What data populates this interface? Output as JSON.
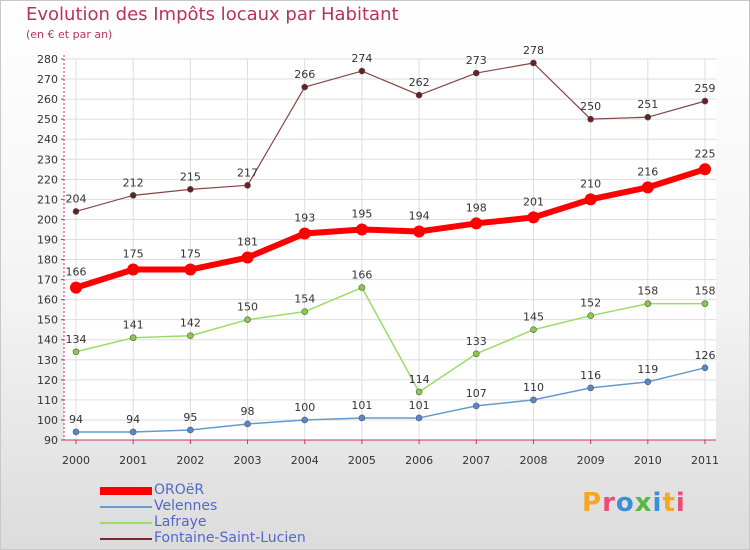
{
  "title": "Evolution des Impôts locaux par Habitant",
  "subtitle": "(en € et par an)",
  "logo_text": "Proxiti",
  "chart_data": {
    "type": "line",
    "x": [
      "2000",
      "2001",
      "2002",
      "2003",
      "2004",
      "2005",
      "2006",
      "2007",
      "2008",
      "2009",
      "2010",
      "2011"
    ],
    "ylim": [
      90,
      280
    ],
    "ytick_step": 10,
    "grid": true,
    "legend_position": "bottom-left",
    "series": [
      {
        "name": "OROëR",
        "color": "#ff0000",
        "values": [
          166,
          175,
          175,
          181,
          193,
          195,
          194,
          198,
          201,
          210,
          216,
          225
        ]
      },
      {
        "name": "Velennes",
        "color": "#6699cc",
        "values": [
          94,
          94,
          95,
          98,
          100,
          101,
          101,
          107,
          110,
          116,
          119,
          126
        ]
      },
      {
        "name": "Lafraye",
        "color": "#99dd66",
        "values": [
          134,
          141,
          142,
          150,
          154,
          166,
          114,
          133,
          145,
          152,
          158,
          158
        ]
      },
      {
        "name": "Fontaine-Saint-Lucien",
        "color": "#7a2a2a",
        "values": [
          204,
          212,
          215,
          217,
          266,
          274,
          262,
          273,
          278,
          250,
          251,
          259
        ]
      }
    ]
  }
}
